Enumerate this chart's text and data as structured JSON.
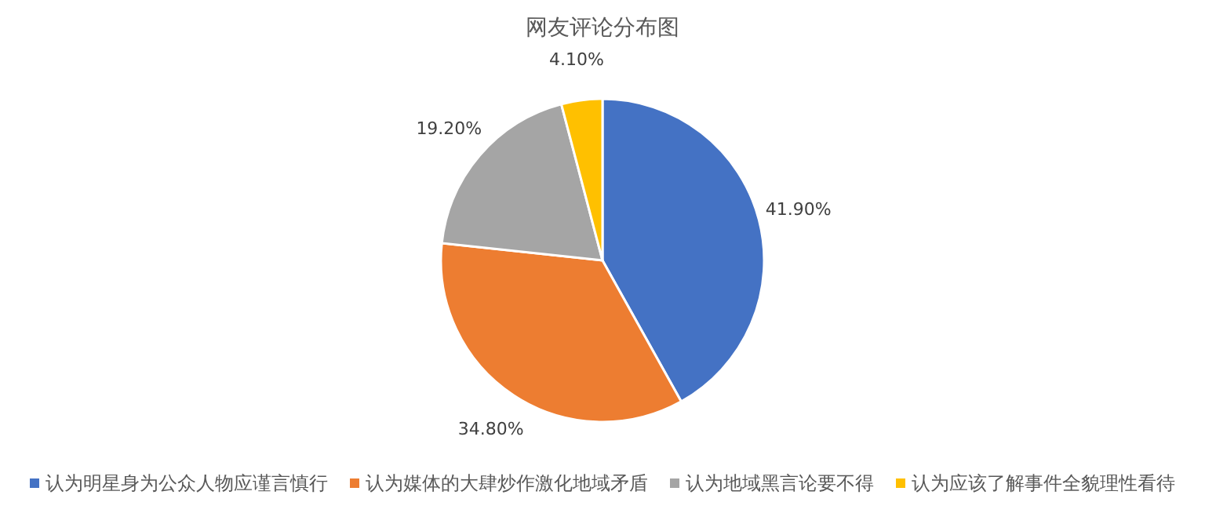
{
  "chart_data": {
    "type": "pie",
    "title": "网友评论分布图",
    "categories": [
      "认为明星身为公众人物应谨言慎行",
      "认为媒体的大肆炒作激化地域矛盾",
      "认为地域黑言论要不得",
      "认为应该了解事件全貌理性看待"
    ],
    "values": [
      41.9,
      34.8,
      19.2,
      4.1
    ],
    "colors": [
      "#4472c4",
      "#ed7d31",
      "#a5a5a5",
      "#ffc000"
    ],
    "value_labels": [
      "41.90%",
      "34.80%",
      "19.20%",
      "4.10%"
    ],
    "legend": "bottom"
  }
}
